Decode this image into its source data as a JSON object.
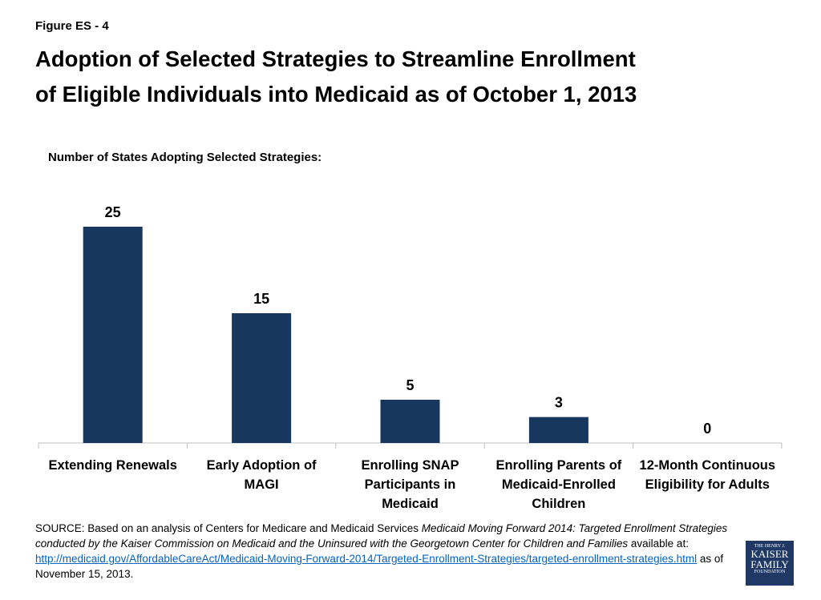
{
  "figure_label": "Figure ES - 4",
  "chart_data": {
    "type": "bar",
    "title": [
      "Adoption of Selected Strategies to Streamline Enrollment",
      "of Eligible Individuals into Medicaid as of October 1, 2013"
    ],
    "subtitle": "Number of States Adopting Selected Strategies:",
    "categories": [
      "Extending Renewals",
      "Early Adoption of MAGI",
      "Enrolling SNAP Participants in Medicaid",
      "Enrolling Parents of Medicaid-Enrolled Children",
      "12-Month Continuous Eligibility for Adults"
    ],
    "values": [
      25,
      15,
      5,
      3,
      0
    ],
    "color": "#17375e",
    "ylim": [
      0,
      25
    ]
  },
  "source": [
    "SOURCE: Based on an analysis of Centers for Medicare and Medicaid Services ",
    "Medicaid Moving Forward 2014: Targeted Enrollment Strategies conducted by the Kaiser Commission on Medicaid and the Uninsured with the Georgetown Center for Children and Families",
    " available at: ",
    "http://medicaid.gov/AffordableCareAct/Medicaid-Moving-Forward-2014/Targeted-Enrollment-Strategies/targeted-enrollment-strategies.html",
    " as of November 15, 2013."
  ],
  "logo": [
    "THE HENRY J.",
    "KAISER",
    "FAMILY",
    "FOUNDATION"
  ]
}
